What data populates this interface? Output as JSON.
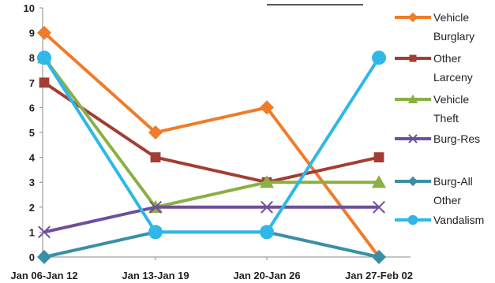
{
  "chart_data": {
    "type": "line",
    "title": "",
    "xlabel": "",
    "ylabel": "",
    "categories": [
      "Jan 06-Jan 12",
      "Jan 13-Jan 19",
      "Jan 20-Jan 26",
      "Jan 27-Feb 02"
    ],
    "ylim": [
      0,
      10
    ],
    "yticks": [
      "0",
      "1",
      "2",
      "3",
      "4",
      "5",
      "6",
      "7",
      "8",
      "9",
      "10"
    ],
    "grid": false,
    "legend_position": "right",
    "series": [
      {
        "name": "Vehicle Burglary",
        "label_lines": [
          "Vehicle",
          "Burglary"
        ],
        "values": [
          9,
          5,
          6,
          0
        ],
        "color": "#f07c2a",
        "marker": "diamond"
      },
      {
        "name": "Other Larceny",
        "label_lines": [
          "Other",
          "Larceny"
        ],
        "values": [
          7,
          4,
          3,
          4
        ],
        "color": "#a33d33",
        "marker": "square"
      },
      {
        "name": "Vehicle Theft",
        "label_lines": [
          "Vehicle",
          "Theft"
        ],
        "values": [
          8,
          2,
          3,
          3
        ],
        "color": "#8ab043",
        "marker": "triangle"
      },
      {
        "name": "Burg-Res",
        "label_lines": [
          "Burg-Res"
        ],
        "values": [
          1,
          2,
          2,
          2
        ],
        "color": "#6f4f9c",
        "marker": "x"
      },
      {
        "name": "Burg-All Other",
        "label_lines": [
          "Burg-All",
          "Other"
        ],
        "values": [
          0,
          1,
          1,
          0
        ],
        "color": "#3a8fa6",
        "marker": "diamond"
      },
      {
        "name": "Vandalism",
        "label_lines": [
          "Vandalism"
        ],
        "values": [
          8,
          1,
          1,
          8
        ],
        "color": "#2fb7e8",
        "marker": "circle"
      }
    ]
  }
}
